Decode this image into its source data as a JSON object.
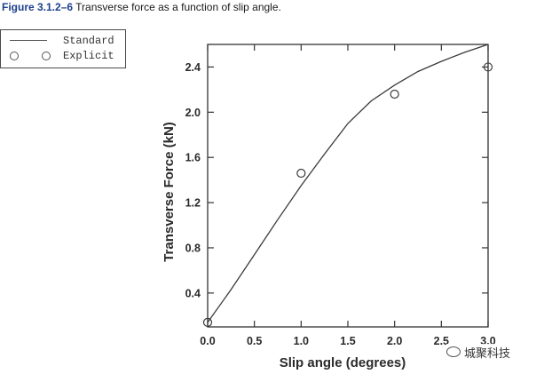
{
  "caption": {
    "label": "Figure 3.1.2–6",
    "text": "Transverse force as a function of slip angle."
  },
  "legend": {
    "standard": "Standard",
    "explicit": "Explicit"
  },
  "watermark": {
    "text": "城聚科技",
    "icon": "wechat-icon"
  },
  "chart_data": {
    "type": "line",
    "title": "",
    "xlabel": "Slip angle (degrees)",
    "ylabel": "Transverse Force (kN)",
    "xlim": [
      0,
      3.0
    ],
    "ylim": [
      0.1,
      2.6
    ],
    "x_ticks": [
      "0.0",
      "0.5",
      "1.0",
      "1.5",
      "2.0",
      "2.5",
      "3.0"
    ],
    "y_ticks": [
      "0.4",
      "0.8",
      "1.2",
      "1.6",
      "2.0",
      "2.4"
    ],
    "grid": false,
    "legend_position": "top-left",
    "series": [
      {
        "name": "Standard",
        "style": "line",
        "color": "#3a3a3a",
        "x": [
          0.0,
          0.25,
          0.5,
          0.75,
          1.0,
          1.25,
          1.5,
          1.75,
          2.0,
          2.25,
          2.5,
          2.75,
          3.0
        ],
        "y": [
          0.14,
          0.43,
          0.74,
          1.05,
          1.35,
          1.63,
          1.9,
          2.1,
          2.24,
          2.36,
          2.45,
          2.53,
          2.6
        ]
      },
      {
        "name": "Explicit",
        "style": "markers",
        "marker": "open-circle",
        "color": "#3a3a3a",
        "x": [
          0.0,
          1.0,
          2.0,
          3.0
        ],
        "y": [
          0.14,
          1.46,
          2.16,
          2.4
        ]
      }
    ]
  }
}
